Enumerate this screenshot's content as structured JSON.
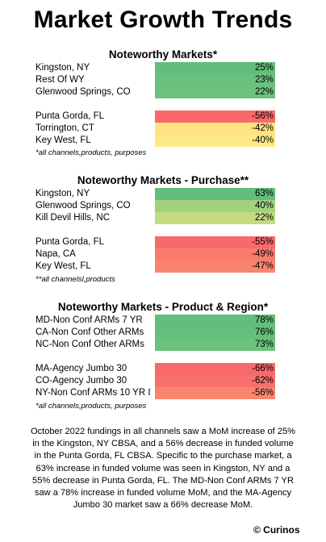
{
  "title": "Market Growth Trends",
  "sections": [
    {
      "title": "Noteworthy Markets*",
      "top_rows": [
        {
          "label": "Kingston, NY",
          "value": "25%",
          "color": "#63be7b"
        },
        {
          "label": "Rest Of WY",
          "value": "23%",
          "color": "#6bc07c"
        },
        {
          "label": "Glenwood Springs, CO",
          "value": "22%",
          "color": "#6dc17c"
        }
      ],
      "bottom_rows": [
        {
          "label": "Punta Gorda, FL",
          "value": "-56%",
          "color": "#f8696b"
        },
        {
          "label": "Torrington, CT",
          "value": "-42%",
          "color": "#fee283"
        },
        {
          "label": "Key West, FL",
          "value": "-40%",
          "color": "#ffe984"
        }
      ],
      "note": "*all channels,products, purposes"
    },
    {
      "title": "Noteworthy Markets - Purchase**",
      "top_rows": [
        {
          "label": "Kingston, NY",
          "value": "63%",
          "color": "#63be7b"
        },
        {
          "label": "Glenwood Springs, CO",
          "value": "40%",
          "color": "#a3d27f"
        },
        {
          "label": "Kill Devil Hills, NC",
          "value": "22%",
          "color": "#c3dc81"
        }
      ],
      "bottom_rows": [
        {
          "label": "Punta Gorda, FL",
          "value": "-55%",
          "color": "#f8696b"
        },
        {
          "label": "Napa, CA",
          "value": "-49%",
          "color": "#f97c6e"
        },
        {
          "label": "Key West, FL",
          "value": "-47%",
          "color": "#f98570"
        }
      ],
      "note": "**all channelsl,products"
    },
    {
      "title": "Noteworthy Markets - Product & Region*",
      "top_rows": [
        {
          "label": "MD-Non Conf ARMs 7 YR",
          "value": "78%",
          "color": "#63be7b"
        },
        {
          "label": "CA-Non Conf Other ARMs",
          "value": "76%",
          "color": "#66bf7b"
        },
        {
          "label": "NC-Non Conf Other ARMs",
          "value": "73%",
          "color": "#6cc17c"
        }
      ],
      "bottom_rows": [
        {
          "label": "MA-Agency Jumbo 30",
          "value": "-66%",
          "color": "#f8696b"
        },
        {
          "label": "CO-Agency Jumbo 30",
          "value": "-62%",
          "color": "#f8706c"
        },
        {
          "label": "NY-Non Conf ARMs 10 YR I",
          "value": "-56%",
          "color": "#f98670"
        }
      ],
      "note": "*all channels,products, purposes"
    }
  ],
  "summary": "October 2022 fundings in all channels saw a MoM increase of 25% in the Kingston, NY CBSA, and a 56% decrease in funded volume in the Punta Gorda, FL CBSA. Specific to the purchase market, a 63% increase in funded volume was seen in Kingston, NY and a 55% decrease in Punta Gorda, FL. The MD-Non Conf ARMs 7 YR saw a 78% increase in funded volume MoM, and the MA-Agency Jumbo 30 market saw a 66% decrease MoM.",
  "logo": "© Curinos"
}
